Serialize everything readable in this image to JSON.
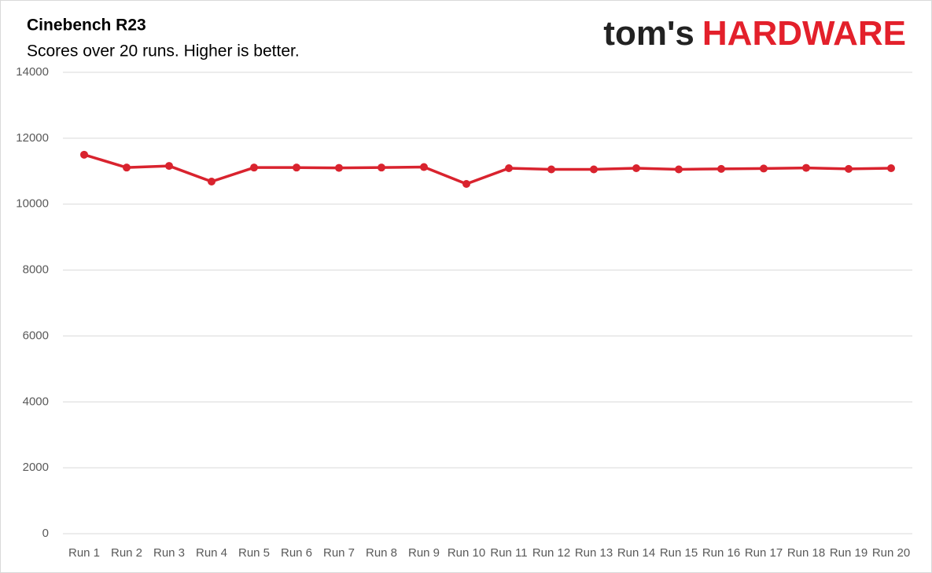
{
  "chart_data": {
    "type": "line",
    "title": "Cinebench R23",
    "subtitle": "Scores over 20 runs. Higher is better.",
    "logo": {
      "prefix": "tom's",
      "name": "HARDWARE"
    },
    "categories": [
      "Run 1",
      "Run 2",
      "Run 3",
      "Run 4",
      "Run 5",
      "Run 6",
      "Run 7",
      "Run 8",
      "Run 9",
      "Run 10",
      "Run 11",
      "Run 12",
      "Run 13",
      "Run 14",
      "Run 15",
      "Run 16",
      "Run 17",
      "Run 18",
      "Run 19",
      "Run 20"
    ],
    "values": [
      11500,
      11110,
      11160,
      10685,
      11110,
      11110,
      11100,
      11110,
      11125,
      10613,
      11090,
      11055,
      11055,
      11090,
      11055,
      11070,
      11080,
      11100,
      11070,
      11090
    ],
    "color": "#d9232e",
    "ylim": [
      0,
      14000
    ],
    "yticks": [
      0,
      2000,
      4000,
      6000,
      8000,
      10000,
      12000,
      14000
    ],
    "grid": true
  }
}
